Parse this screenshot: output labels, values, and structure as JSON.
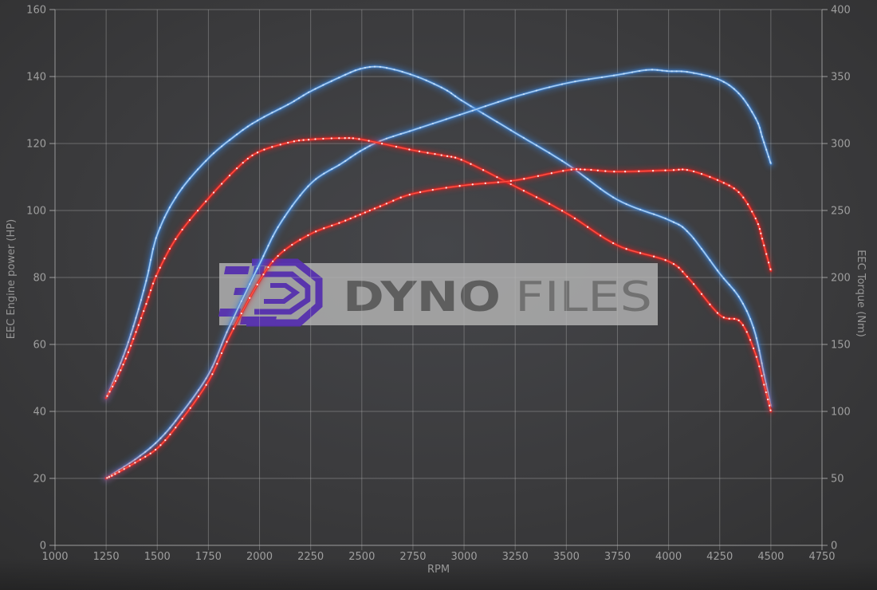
{
  "axes": {
    "x": {
      "title": "RPM",
      "min": 1000,
      "max": 4750,
      "step": 250,
      "tick_labels": [
        "1000",
        "1250",
        "1500",
        "1750",
        "2000",
        "2250",
        "2500",
        "2750",
        "3000",
        "3250",
        "3500",
        "3750",
        "4000",
        "4250",
        "4500",
        "4750"
      ]
    },
    "y_left": {
      "title": "EEC Engine power (HP)",
      "min": 0,
      "max": 160,
      "step": 20,
      "tick_labels": [
        "0",
        "20",
        "40",
        "60",
        "80",
        "100",
        "120",
        "140",
        "160"
      ]
    },
    "y_right": {
      "title": "EEC Torque (Nm)",
      "min": 0,
      "max": 400,
      "step": 50,
      "tick_labels": [
        "0",
        "50",
        "100",
        "150",
        "200",
        "250",
        "300",
        "350",
        "400"
      ]
    }
  },
  "watermark": {
    "brand_bold": "DYNO",
    "brand_light": "FILES",
    "logo": "dynofiles-logo"
  },
  "colors": {
    "tuned": "#3d85dc",
    "tuned_core": "#a9cdf0",
    "stock": "#e02424",
    "stock_core": "#ff5848",
    "dot": "#ffffff",
    "grid": "#b7b7b7",
    "label": "#9f9f9f",
    "background": "#3a3a3c",
    "watermark_band": "#b4b4b4",
    "logo_purple": "#5731ae"
  },
  "chart_data": {
    "type": "line",
    "xlabel": "RPM",
    "x_range": [
      1000,
      4750
    ],
    "left_axis": {
      "label": "EEC Engine power (HP)",
      "range": [
        0,
        160
      ]
    },
    "right_axis": {
      "label": "EEC Torque (Nm)",
      "range": [
        0,
        400
      ]
    },
    "grid": true,
    "legend": "none",
    "series": [
      {
        "name": "engine-power-tuned",
        "unit": "HP",
        "axis": "left",
        "color": "#3d85dc",
        "points": [
          [
            1250,
            20
          ],
          [
            1300,
            22
          ],
          [
            1400,
            26
          ],
          [
            1500,
            31
          ],
          [
            1600,
            38
          ],
          [
            1750,
            51
          ],
          [
            1850,
            65
          ],
          [
            2000,
            84
          ],
          [
            2100,
            96
          ],
          [
            2250,
            108
          ],
          [
            2400,
            114
          ],
          [
            2500,
            118
          ],
          [
            2600,
            121
          ],
          [
            2750,
            124
          ],
          [
            3000,
            129
          ],
          [
            3250,
            134
          ],
          [
            3500,
            138
          ],
          [
            3750,
            140.5
          ],
          [
            3900,
            142
          ],
          [
            4000,
            141.6
          ],
          [
            4100,
            141.3
          ],
          [
            4250,
            139
          ],
          [
            4350,
            134.5
          ],
          [
            4430,
            127
          ],
          [
            4460,
            121.5
          ],
          [
            4500,
            114
          ]
        ]
      },
      {
        "name": "engine-power-stock",
        "unit": "HP",
        "axis": "left",
        "color": "#e02424",
        "points": [
          [
            1250,
            20
          ],
          [
            1300,
            21.5
          ],
          [
            1400,
            25
          ],
          [
            1500,
            29
          ],
          [
            1600,
            36
          ],
          [
            1750,
            49
          ],
          [
            1850,
            62
          ],
          [
            2000,
            79
          ],
          [
            2100,
            87
          ],
          [
            2250,
            93
          ],
          [
            2400,
            96.5
          ],
          [
            2500,
            99
          ],
          [
            2600,
            101.5
          ],
          [
            2750,
            105
          ],
          [
            3000,
            107.5
          ],
          [
            3250,
            109
          ],
          [
            3500,
            112
          ],
          [
            3600,
            112.2
          ],
          [
            3750,
            111.6
          ],
          [
            4000,
            112
          ],
          [
            4100,
            112
          ],
          [
            4250,
            108.8
          ],
          [
            4350,
            105
          ],
          [
            4430,
            97
          ],
          [
            4460,
            91
          ],
          [
            4500,
            82
          ]
        ]
      },
      {
        "name": "torque-tuned",
        "unit": "Nm",
        "axis": "right",
        "color": "#3d85dc",
        "points": [
          [
            1250,
            110
          ],
          [
            1300,
            128
          ],
          [
            1350,
            148
          ],
          [
            1400,
            172
          ],
          [
            1450,
            200
          ],
          [
            1500,
            232
          ],
          [
            1600,
            262
          ],
          [
            1750,
            289
          ],
          [
            1900,
            308
          ],
          [
            2000,
            318
          ],
          [
            2150,
            330
          ],
          [
            2250,
            339
          ],
          [
            2400,
            350
          ],
          [
            2500,
            356
          ],
          [
            2600,
            357
          ],
          [
            2750,
            351
          ],
          [
            2900,
            341
          ],
          [
            3000,
            331
          ],
          [
            3250,
            308
          ],
          [
            3500,
            285
          ],
          [
            3750,
            258
          ],
          [
            4000,
            243
          ],
          [
            4100,
            233
          ],
          [
            4250,
            203
          ],
          [
            4350,
            184
          ],
          [
            4420,
            160
          ],
          [
            4470,
            125
          ],
          [
            4500,
            104
          ]
        ]
      },
      {
        "name": "torque-stock",
        "unit": "Nm",
        "axis": "right",
        "color": "#e02424",
        "points": [
          [
            1250,
            110
          ],
          [
            1300,
            124
          ],
          [
            1350,
            141
          ],
          [
            1400,
            161
          ],
          [
            1450,
            182
          ],
          [
            1500,
            203
          ],
          [
            1600,
            231
          ],
          [
            1750,
            259
          ],
          [
            1900,
            283
          ],
          [
            2000,
            294
          ],
          [
            2150,
            301
          ],
          [
            2250,
            303
          ],
          [
            2400,
            304
          ],
          [
            2500,
            303
          ],
          [
            2750,
            295
          ],
          [
            2900,
            291
          ],
          [
            3000,
            287
          ],
          [
            3250,
            268
          ],
          [
            3500,
            248
          ],
          [
            3750,
            224
          ],
          [
            4000,
            212
          ],
          [
            4100,
            199
          ],
          [
            4250,
            172
          ],
          [
            4350,
            167
          ],
          [
            4420,
            145
          ],
          [
            4470,
            118
          ],
          [
            4500,
            100
          ]
        ]
      }
    ]
  }
}
